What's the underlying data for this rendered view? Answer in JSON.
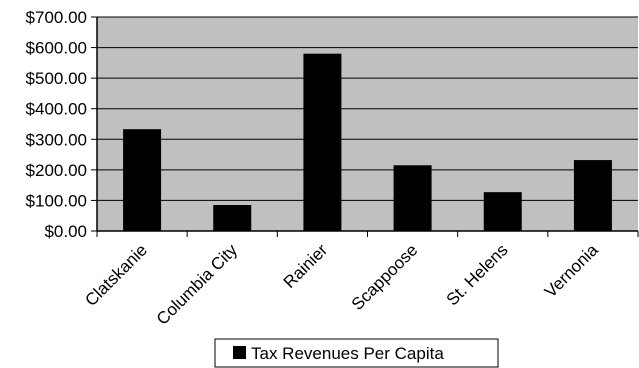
{
  "chart_data": {
    "type": "bar",
    "categories": [
      "Clatskanie",
      "Columbia City",
      "Rainier",
      "Scappoose",
      "St. Helens",
      "Vernonia"
    ],
    "series": [
      {
        "name": "Tax Revenues Per Capita",
        "values": [
          333,
          85,
          580,
          215,
          127,
          232
        ]
      }
    ],
    "ylim": [
      0,
      700
    ],
    "yticks": [
      0,
      100,
      200,
      300,
      400,
      500,
      600,
      700
    ],
    "ytick_labels": [
      "$0.00",
      "$100.00",
      "$200.00",
      "$300.00",
      "$400.00",
      "$500.00",
      "$600.00",
      "$700.00"
    ],
    "grid": true,
    "legend_position": "bottom",
    "colors": {
      "plot_background": "#c0c0c0",
      "bar": "#000000",
      "gridline": "#000000"
    }
  }
}
